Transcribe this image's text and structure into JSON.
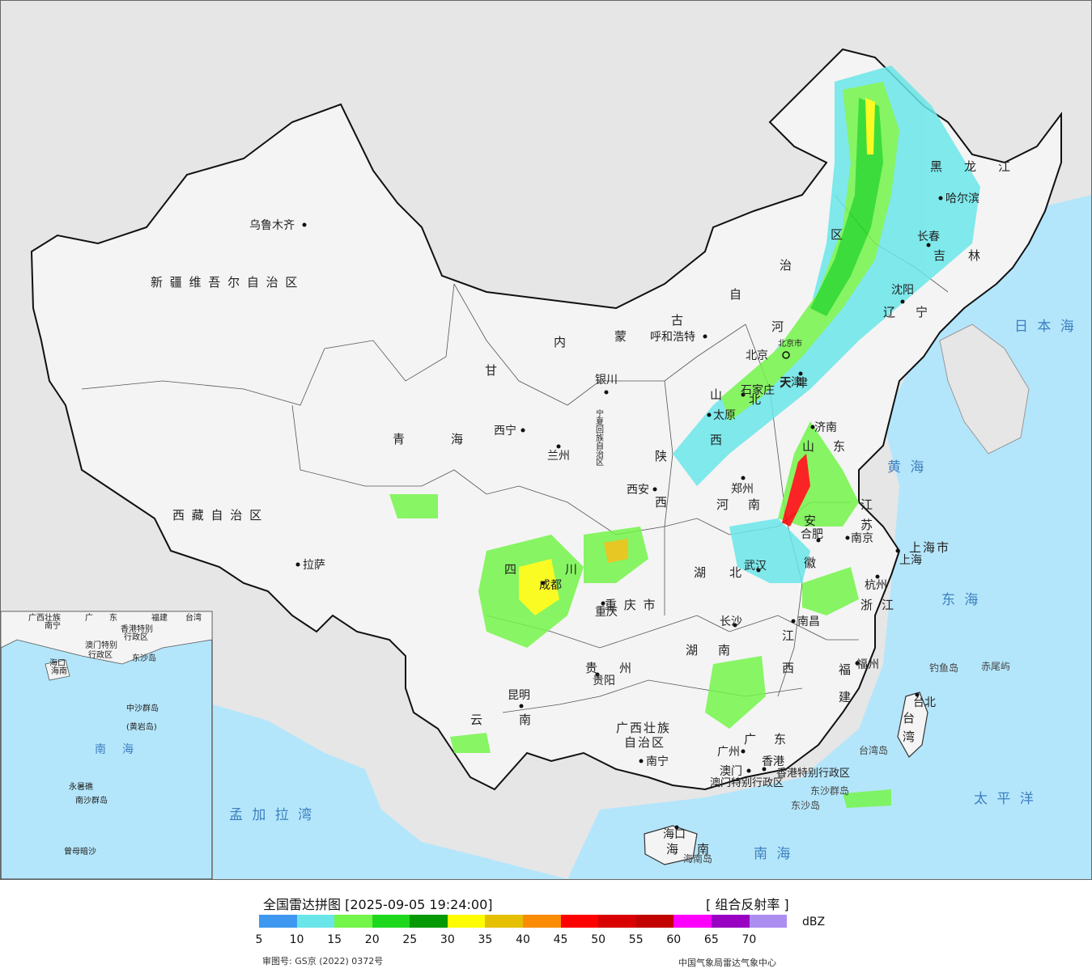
{
  "map": {
    "provinces": [
      "新 疆 维 吾 尔 自 治 区",
      "西 藏 自 治 区",
      "青",
      "海",
      "甘",
      "内",
      "蒙",
      "古",
      "自",
      "治",
      "区",
      "黑",
      "龙",
      "江",
      "吉",
      "林",
      "辽",
      "宁",
      "河",
      "北",
      "山",
      "西",
      "陕",
      "西",
      "宁夏回族自治区",
      "四",
      "川",
      "重 庆 市",
      "贵",
      "州",
      "云",
      "南",
      "湖",
      "北",
      "湖",
      "南",
      "河",
      "南",
      "山",
      "东",
      "安",
      "徽",
      "江",
      "苏",
      "上海市",
      "浙",
      "江",
      "江",
      "西",
      "福",
      "建",
      "广",
      "东",
      "广西壮族",
      "自治区",
      "海",
      "南",
      "台",
      "湾",
      "天",
      "津",
      "北京市"
    ],
    "cities": [
      "乌鲁木齐",
      "拉萨",
      "西宁",
      "兰州",
      "银川",
      "呼和浩特",
      "北京",
      "天津",
      "石家庄",
      "太原",
      "济南",
      "郑州",
      "西安",
      "成都",
      "重庆",
      "贵阳",
      "昆明",
      "南宁",
      "广州",
      "澳门",
      "香港",
      "长沙",
      "武汉",
      "合肥",
      "南京",
      "上海",
      "杭州",
      "南昌",
      "福州",
      "台北",
      "哈尔滨",
      "长春",
      "沈阳",
      "海口"
    ],
    "seas": [
      "日 本 海",
      "黄 海",
      "东 海",
      "太 平 洋",
      "南 海",
      "孟 加 拉 湾"
    ],
    "islands": [
      "钓鱼岛",
      "赤尾屿",
      "台湾岛",
      "东沙群岛",
      "东沙岛",
      "海南岛"
    ],
    "sars": [
      "香港特别行政区",
      "澳门特别行政区"
    ],
    "inset": {
      "labels": [
        "广西壮族",
        "广",
        "东",
        "福建",
        "台湾",
        "南宁",
        "海口",
        "香港特别",
        "澳门特别",
        "行政区",
        "行政区",
        "东沙岛",
        "海南",
        "中沙群岛",
        "(黄岩岛)",
        "南",
        "海",
        "永暑礁",
        "南沙群岛",
        "曾母暗沙"
      ]
    }
  },
  "legend": {
    "title": "全国雷达拼图 [2025-09-05 19:24:00]",
    "product": "[ 组合反射率 ]",
    "unit": "dBZ",
    "ticks": [
      "5",
      "10",
      "15",
      "20",
      "25",
      "30",
      "35",
      "40",
      "45",
      "50",
      "55",
      "60",
      "65",
      "70"
    ],
    "colors": [
      "#3f98ef",
      "#6ae6ea",
      "#74f54a",
      "#1ed81e",
      "#059905",
      "#fdfd00",
      "#e5c000",
      "#fb8b00",
      "#fd0000",
      "#d80000",
      "#c20000",
      "#fd00fd",
      "#9900c2",
      "#ac8ef0"
    ],
    "approval": "审图号: GS京 (2022) 0372号",
    "source": "中国气象局雷达气象中心"
  }
}
